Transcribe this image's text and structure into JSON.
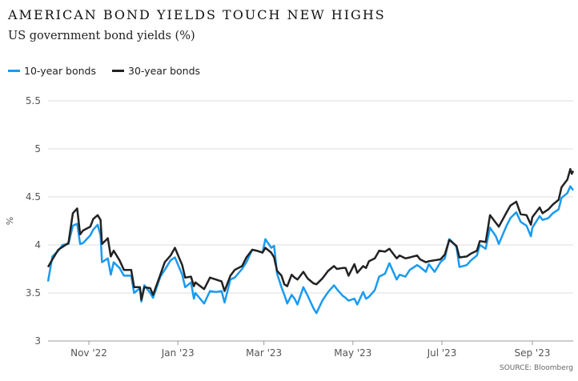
{
  "title": "AMERICAN BOND YIELDS TOUCH NEW HIGHS",
  "subtitle": "US government bond yields (%)",
  "source": "SOURCE: Bloomberg",
  "colors": {
    "ten_year": "#1a9af0",
    "thirty_year": "#222222",
    "grid": "#dddddd",
    "axis_text": "#555555"
  },
  "chart_data": {
    "type": "line",
    "title": "AMERICAN BOND YIELDS TOUCH NEW HIGHS",
    "subtitle": "US government bond yields (%)",
    "ylabel": "%",
    "xlabel": "",
    "ylim": [
      3,
      5.5
    ],
    "yticks": [
      3,
      3.5,
      4,
      4.5,
      5,
      5.5
    ],
    "ytick_labels": [
      "3",
      "3.5",
      "4",
      "4.5",
      "5",
      "5.5"
    ],
    "xlim": [
      "2022-10-04",
      "2023-09-29"
    ],
    "xticks": [
      {
        "date": "2022-11-01",
        "label": "Nov '22"
      },
      {
        "date": "2023-01-01",
        "label": "Jan '23"
      },
      {
        "date": "2023-03-01",
        "label": "Mar '23"
      },
      {
        "date": "2023-05-01",
        "label": "May '23"
      },
      {
        "date": "2023-07-01",
        "label": "Jul '23"
      },
      {
        "date": "2023-09-01",
        "label": "Sep '23"
      }
    ],
    "grid": true,
    "legend_position": "top-left",
    "series": [
      {
        "name": "10-year bonds",
        "color": "#1a9af0",
        "points": [
          [
            "2022-10-04",
            3.62
          ],
          [
            "2022-10-07",
            3.88
          ],
          [
            "2022-10-11",
            3.94
          ],
          [
            "2022-10-14",
            4.0
          ],
          [
            "2022-10-18",
            4.01
          ],
          [
            "2022-10-21",
            4.2
          ],
          [
            "2022-10-24",
            4.22
          ],
          [
            "2022-10-26",
            4.01
          ],
          [
            "2022-10-28",
            4.02
          ],
          [
            "2022-11-02",
            4.1
          ],
          [
            "2022-11-04",
            4.16
          ],
          [
            "2022-11-07",
            4.21
          ],
          [
            "2022-11-09",
            4.1
          ],
          [
            "2022-11-10",
            3.82
          ],
          [
            "2022-11-14",
            3.86
          ],
          [
            "2022-11-16",
            3.69
          ],
          [
            "2022-11-18",
            3.82
          ],
          [
            "2022-11-22",
            3.76
          ],
          [
            "2022-11-25",
            3.68
          ],
          [
            "2022-11-30",
            3.68
          ],
          [
            "2022-12-02",
            3.5
          ],
          [
            "2022-12-06",
            3.55
          ],
          [
            "2022-12-07",
            3.41
          ],
          [
            "2022-12-09",
            3.58
          ],
          [
            "2022-12-13",
            3.5
          ],
          [
            "2022-12-15",
            3.45
          ],
          [
            "2022-12-20",
            3.67
          ],
          [
            "2022-12-23",
            3.74
          ],
          [
            "2022-12-27",
            3.84
          ],
          [
            "2022-12-30",
            3.87
          ],
          [
            "2023-01-04",
            3.69
          ],
          [
            "2023-01-06",
            3.56
          ],
          [
            "2023-01-10",
            3.61
          ],
          [
            "2023-01-12",
            3.44
          ],
          [
            "2023-01-13",
            3.5
          ],
          [
            "2023-01-19",
            3.39
          ],
          [
            "2023-01-23",
            3.52
          ],
          [
            "2023-01-27",
            3.51
          ],
          [
            "2023-01-31",
            3.52
          ],
          [
            "2023-02-02",
            3.4
          ],
          [
            "2023-02-06",
            3.64
          ],
          [
            "2023-02-09",
            3.66
          ],
          [
            "2023-02-14",
            3.75
          ],
          [
            "2023-02-17",
            3.82
          ],
          [
            "2023-02-21",
            3.95
          ],
          [
            "2023-02-24",
            3.94
          ],
          [
            "2023-02-28",
            3.92
          ],
          [
            "2023-03-02",
            4.06
          ],
          [
            "2023-03-06",
            3.97
          ],
          [
            "2023-03-08",
            3.99
          ],
          [
            "2023-03-10",
            3.7
          ],
          [
            "2023-03-13",
            3.56
          ],
          [
            "2023-03-15",
            3.48
          ],
          [
            "2023-03-17",
            3.39
          ],
          [
            "2023-03-20",
            3.48
          ],
          [
            "2023-03-22",
            3.44
          ],
          [
            "2023-03-24",
            3.38
          ],
          [
            "2023-03-28",
            3.56
          ],
          [
            "2023-03-31",
            3.47
          ],
          [
            "2023-04-04",
            3.34
          ],
          [
            "2023-04-06",
            3.29
          ],
          [
            "2023-04-10",
            3.42
          ],
          [
            "2023-04-14",
            3.51
          ],
          [
            "2023-04-18",
            3.58
          ],
          [
            "2023-04-20",
            3.54
          ],
          [
            "2023-04-24",
            3.47
          ],
          [
            "2023-04-26",
            3.45
          ],
          [
            "2023-04-28",
            3.42
          ],
          [
            "2023-05-02",
            3.44
          ],
          [
            "2023-05-04",
            3.38
          ],
          [
            "2023-05-08",
            3.51
          ],
          [
            "2023-05-10",
            3.44
          ],
          [
            "2023-05-12",
            3.46
          ],
          [
            "2023-05-16",
            3.53
          ],
          [
            "2023-05-19",
            3.67
          ],
          [
            "2023-05-23",
            3.7
          ],
          [
            "2023-05-26",
            3.81
          ],
          [
            "2023-05-31",
            3.64
          ],
          [
            "2023-06-02",
            3.69
          ],
          [
            "2023-06-06",
            3.67
          ],
          [
            "2023-06-09",
            3.74
          ],
          [
            "2023-06-14",
            3.79
          ],
          [
            "2023-06-16",
            3.77
          ],
          [
            "2023-06-20",
            3.72
          ],
          [
            "2023-06-22",
            3.8
          ],
          [
            "2023-06-26",
            3.72
          ],
          [
            "2023-06-30",
            3.82
          ],
          [
            "2023-07-03",
            3.86
          ],
          [
            "2023-07-06",
            4.06
          ],
          [
            "2023-07-07",
            4.05
          ],
          [
            "2023-07-11",
            3.98
          ],
          [
            "2023-07-13",
            3.77
          ],
          [
            "2023-07-18",
            3.79
          ],
          [
            "2023-07-21",
            3.84
          ],
          [
            "2023-07-25",
            3.89
          ],
          [
            "2023-07-27",
            4.0
          ],
          [
            "2023-07-31",
            3.96
          ],
          [
            "2023-08-03",
            4.18
          ],
          [
            "2023-08-07",
            4.09
          ],
          [
            "2023-08-09",
            4.01
          ],
          [
            "2023-08-14",
            4.19
          ],
          [
            "2023-08-17",
            4.28
          ],
          [
            "2023-08-21",
            4.34
          ],
          [
            "2023-08-24",
            4.24
          ],
          [
            "2023-08-28",
            4.2
          ],
          [
            "2023-08-31",
            4.09
          ],
          [
            "2023-09-01",
            4.18
          ],
          [
            "2023-09-06",
            4.3
          ],
          [
            "2023-09-08",
            4.26
          ],
          [
            "2023-09-12",
            4.28
          ],
          [
            "2023-09-15",
            4.33
          ],
          [
            "2023-09-19",
            4.37
          ],
          [
            "2023-09-21",
            4.49
          ],
          [
            "2023-09-25",
            4.54
          ],
          [
            "2023-09-27",
            4.61
          ],
          [
            "2023-09-28",
            4.59
          ],
          [
            "2023-09-29",
            4.57
          ]
        ]
      },
      {
        "name": "30-year bonds",
        "color": "#222222",
        "points": [
          [
            "2022-10-04",
            3.77
          ],
          [
            "2022-10-07",
            3.85
          ],
          [
            "2022-10-11",
            3.95
          ],
          [
            "2022-10-14",
            3.98
          ],
          [
            "2022-10-18",
            4.02
          ],
          [
            "2022-10-21",
            4.33
          ],
          [
            "2022-10-24",
            4.38
          ],
          [
            "2022-10-26",
            4.11
          ],
          [
            "2022-10-28",
            4.15
          ],
          [
            "2022-11-02",
            4.19
          ],
          [
            "2022-11-04",
            4.27
          ],
          [
            "2022-11-07",
            4.31
          ],
          [
            "2022-11-09",
            4.26
          ],
          [
            "2022-11-10",
            4.01
          ],
          [
            "2022-11-14",
            4.07
          ],
          [
            "2022-11-16",
            3.88
          ],
          [
            "2022-11-18",
            3.94
          ],
          [
            "2022-11-22",
            3.84
          ],
          [
            "2022-11-25",
            3.74
          ],
          [
            "2022-11-30",
            3.74
          ],
          [
            "2022-12-02",
            3.56
          ],
          [
            "2022-12-06",
            3.56
          ],
          [
            "2022-12-07",
            3.43
          ],
          [
            "2022-12-09",
            3.56
          ],
          [
            "2022-12-13",
            3.55
          ],
          [
            "2022-12-15",
            3.48
          ],
          [
            "2022-12-20",
            3.69
          ],
          [
            "2022-12-23",
            3.82
          ],
          [
            "2022-12-27",
            3.89
          ],
          [
            "2022-12-30",
            3.97
          ],
          [
            "2023-01-04",
            3.79
          ],
          [
            "2023-01-06",
            3.66
          ],
          [
            "2023-01-10",
            3.67
          ],
          [
            "2023-01-12",
            3.57
          ],
          [
            "2023-01-13",
            3.61
          ],
          [
            "2023-01-19",
            3.54
          ],
          [
            "2023-01-23",
            3.66
          ],
          [
            "2023-01-27",
            3.64
          ],
          [
            "2023-01-31",
            3.62
          ],
          [
            "2023-02-02",
            3.52
          ],
          [
            "2023-02-06",
            3.68
          ],
          [
            "2023-02-09",
            3.74
          ],
          [
            "2023-02-14",
            3.78
          ],
          [
            "2023-02-17",
            3.87
          ],
          [
            "2023-02-21",
            3.95
          ],
          [
            "2023-02-24",
            3.94
          ],
          [
            "2023-02-28",
            3.92
          ],
          [
            "2023-03-02",
            3.97
          ],
          [
            "2023-03-06",
            3.92
          ],
          [
            "2023-03-08",
            3.87
          ],
          [
            "2023-03-10",
            3.73
          ],
          [
            "2023-03-13",
            3.68
          ],
          [
            "2023-03-15",
            3.59
          ],
          [
            "2023-03-17",
            3.57
          ],
          [
            "2023-03-20",
            3.69
          ],
          [
            "2023-03-22",
            3.66
          ],
          [
            "2023-03-24",
            3.64
          ],
          [
            "2023-03-28",
            3.72
          ],
          [
            "2023-03-31",
            3.65
          ],
          [
            "2023-04-04",
            3.6
          ],
          [
            "2023-04-06",
            3.59
          ],
          [
            "2023-04-10",
            3.65
          ],
          [
            "2023-04-14",
            3.73
          ],
          [
            "2023-04-18",
            3.78
          ],
          [
            "2023-04-20",
            3.75
          ],
          [
            "2023-04-24",
            3.76
          ],
          [
            "2023-04-26",
            3.76
          ],
          [
            "2023-04-28",
            3.68
          ],
          [
            "2023-05-02",
            3.8
          ],
          [
            "2023-05-04",
            3.71
          ],
          [
            "2023-05-08",
            3.78
          ],
          [
            "2023-05-10",
            3.76
          ],
          [
            "2023-05-12",
            3.83
          ],
          [
            "2023-05-16",
            3.86
          ],
          [
            "2023-05-19",
            3.94
          ],
          [
            "2023-05-23",
            3.93
          ],
          [
            "2023-05-26",
            3.96
          ],
          [
            "2023-05-31",
            3.86
          ],
          [
            "2023-06-02",
            3.89
          ],
          [
            "2023-06-06",
            3.86
          ],
          [
            "2023-06-09",
            3.87
          ],
          [
            "2023-06-14",
            3.89
          ],
          [
            "2023-06-16",
            3.85
          ],
          [
            "2023-06-20",
            3.82
          ],
          [
            "2023-06-22",
            3.83
          ],
          [
            "2023-06-26",
            3.84
          ],
          [
            "2023-06-30",
            3.85
          ],
          [
            "2023-07-03",
            3.9
          ],
          [
            "2023-07-06",
            4.05
          ],
          [
            "2023-07-07",
            4.04
          ],
          [
            "2023-07-11",
            3.99
          ],
          [
            "2023-07-13",
            3.87
          ],
          [
            "2023-07-18",
            3.88
          ],
          [
            "2023-07-21",
            3.91
          ],
          [
            "2023-07-25",
            3.94
          ],
          [
            "2023-07-27",
            4.04
          ],
          [
            "2023-07-31",
            4.03
          ],
          [
            "2023-08-03",
            4.31
          ],
          [
            "2023-08-07",
            4.23
          ],
          [
            "2023-08-09",
            4.19
          ],
          [
            "2023-08-14",
            4.33
          ],
          [
            "2023-08-17",
            4.41
          ],
          [
            "2023-08-21",
            4.45
          ],
          [
            "2023-08-24",
            4.32
          ],
          [
            "2023-08-28",
            4.31
          ],
          [
            "2023-08-31",
            4.21
          ],
          [
            "2023-09-01",
            4.29
          ],
          [
            "2023-09-06",
            4.39
          ],
          [
            "2023-09-08",
            4.33
          ],
          [
            "2023-09-12",
            4.37
          ],
          [
            "2023-09-15",
            4.42
          ],
          [
            "2023-09-19",
            4.47
          ],
          [
            "2023-09-21",
            4.6
          ],
          [
            "2023-09-25",
            4.68
          ],
          [
            "2023-09-27",
            4.79
          ],
          [
            "2023-09-28",
            4.74
          ],
          [
            "2023-09-29",
            4.77
          ]
        ]
      }
    ]
  }
}
